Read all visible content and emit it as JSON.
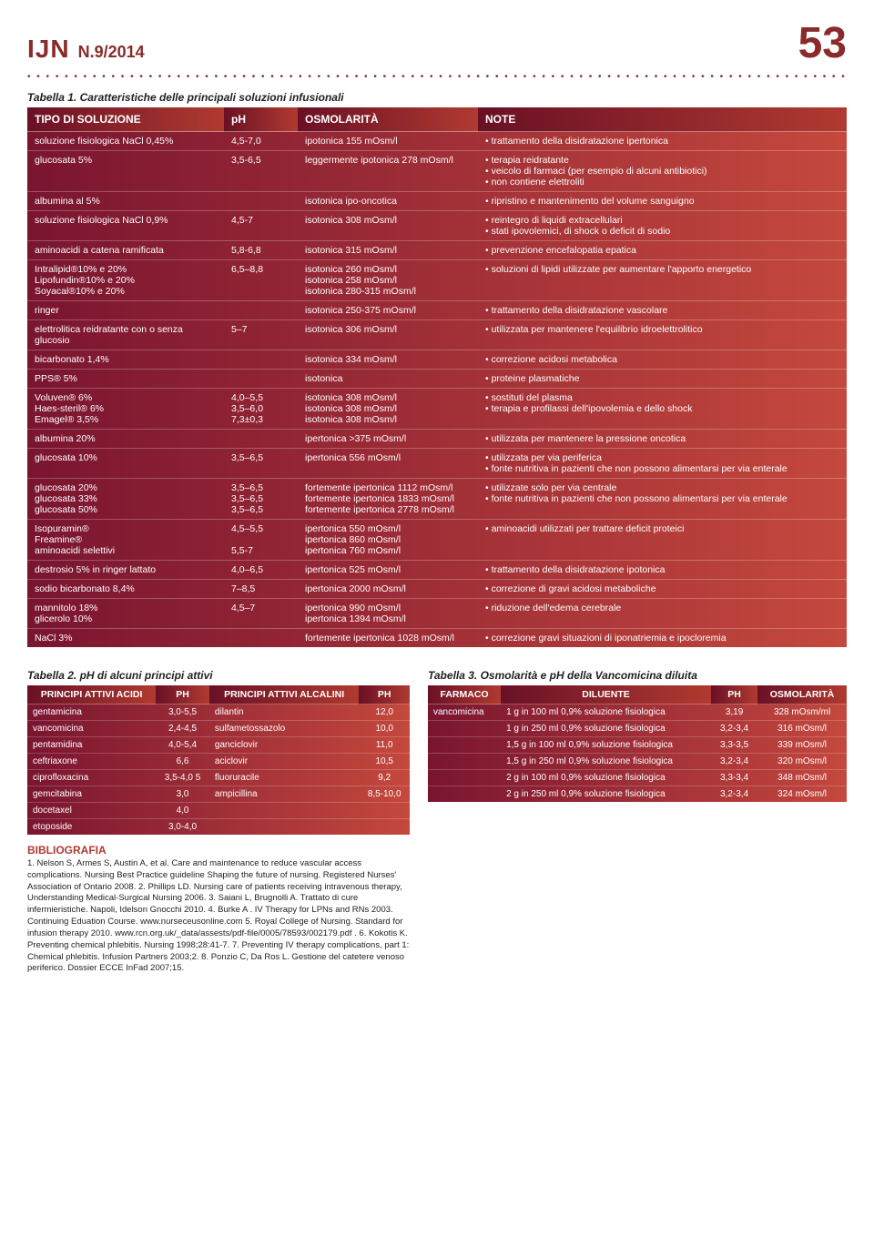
{
  "header": {
    "journal": "IJN",
    "issue": "N.9/2014",
    "page": "53"
  },
  "table1": {
    "caption": "Tabella 1. Caratteristiche delle principali soluzioni infusionali",
    "columns": [
      "TIPO DI SOLUZIONE",
      "pH",
      "OSMOLARITÀ",
      "NOTE"
    ],
    "rows": [
      {
        "tipo": "soluzione fisiologica NaCl 0,45%",
        "ph": "4,5-7,0",
        "osm": "ipotonica 155 mOsm/l",
        "note": [
          "trattamento della disidratazione ipertonica"
        ]
      },
      {
        "tipo": "glucosata 5%",
        "ph": "3,5-6,5",
        "osm": "leggermente ipotonica 278 mOsm/l",
        "note": [
          "terapia reidratante",
          "veicolo di farmaci (per esempio di alcuni antibiotici)",
          "non contiene elettroliti"
        ]
      },
      {
        "tipo": "albumina al 5%",
        "ph": "",
        "osm": "isotonica ipo-oncotica",
        "note": [
          "ripristino e mantenimento del volume sanguigno"
        ]
      },
      {
        "tipo": "soluzione fisiologica NaCl 0,9%",
        "ph": "4,5-7",
        "osm": "isotonica 308 mOsm/l",
        "note": [
          "reintegro di liquidi extracellulari",
          "stati ipovolemici, di shock o deficit di sodio"
        ]
      },
      {
        "tipo": "aminoacidi a catena ramificata",
        "ph": "5,8-6,8",
        "osm": "isotonica 315 mOsm/l",
        "note": [
          "prevenzione encefalopatia epatica"
        ]
      },
      {
        "tipo": "Intralipid®10% e 20%\nLipofundin®10% e 20%\nSoyacal®10% e 20%",
        "ph": "6,5–8,8",
        "osm": "isotonica 260 mOsm/l\nisotonica 258 mOsm/l\nisotonica 280-315 mOsm/l",
        "note": [
          "soluzioni di lipidi utilizzate per aumentare l'apporto energetico"
        ]
      },
      {
        "tipo": "ringer",
        "ph": "",
        "osm": "isotonica 250-375 mOsm/l",
        "note": [
          "trattamento della disidratazione vascolare"
        ]
      },
      {
        "tipo": "elettrolitica reidratante con o senza glucosio",
        "ph": "5–7",
        "osm": "isotonica 306 mOsm/l",
        "note": [
          "utilizzata per mantenere l'equilibrio idroelettrolitico"
        ]
      },
      {
        "tipo": "bicarbonato 1,4%",
        "ph": "",
        "osm": "isotonica 334 mOsm/l",
        "note": [
          "correzione acidosi metabolica"
        ]
      },
      {
        "tipo": "PPS® 5%",
        "ph": "",
        "osm": "isotonica",
        "note": [
          "proteine plasmatiche"
        ]
      },
      {
        "tipo": "Voluven® 6%\nHaes-steril® 6%\nEmagel® 3,5%",
        "ph": "4,0–5,5\n3,5–6,0\n7,3±0,3",
        "osm": "isotonica 308 mOsm/l\nisotonica 308 mOsm/l\nisotonica 308 mOsm/l",
        "note": [
          "sostituti del plasma",
          "terapia e profilassi dell'ipovolemia e dello shock"
        ]
      },
      {
        "tipo": "albumina 20%",
        "ph": "",
        "osm": "ipertonica >375 mOsm/l",
        "note": [
          "utilizzata per mantenere la pressione oncotica"
        ]
      },
      {
        "tipo": "glucosata 10%",
        "ph": "3,5–6,5",
        "osm": "ipertonica 556 mOsm/l",
        "note": [
          "utilizzata per via periferica",
          "fonte nutritiva in pazienti che non possono alimentarsi per via enterale"
        ]
      },
      {
        "tipo": "glucosata 20%\nglucosata 33%\nglucosata 50%",
        "ph": "3,5–6,5\n3,5–6,5\n3,5–6,5",
        "osm": "fortemente ipertonica 1112 mOsm/l\nfortemente ipertonica 1833 mOsm/l\nfortemente ipertonica 2778 mOsm/l",
        "note": [
          "utilizzate solo per via centrale",
          "fonte nutritiva in pazienti che non possono alimentarsi per via enterale"
        ]
      },
      {
        "tipo": "Isopuramin®\nFreamine®\naminoacidi selettivi",
        "ph": "4,5–5,5\n\n5,5-7",
        "osm": "ipertonica 550 mOsm/l\nipertonica 860 mOsm/l\nipertonica 760 mOsm/l",
        "note": [
          "aminoacidi utilizzati per trattare deficit proteici"
        ]
      },
      {
        "tipo": "destrosio 5% in ringer lattato",
        "ph": "4,0–6,5",
        "osm": "ipertonica 525 mOsm/l",
        "note": [
          "trattamento della disidratazione ipotonica"
        ]
      },
      {
        "tipo": "sodio bicarbonato 8,4%",
        "ph": "7–8,5",
        "osm": "ipertonica 2000 mOsm/l",
        "note": [
          "correzione di gravi acidosi metaboliche"
        ]
      },
      {
        "tipo": "mannitolo 18%\nglicerolo 10%",
        "ph": "4,5–7",
        "osm": "ipertonica 990 mOsm/l\nipertonica 1394 mOsm/l",
        "note": [
          "riduzione dell'edema cerebrale"
        ]
      },
      {
        "tipo": "NaCl 3%",
        "ph": "",
        "osm": "fortemente ipertonica 1028 mOsm/l",
        "note": [
          "correzione gravi situazioni di iponatriemia e ipocloremia"
        ]
      }
    ]
  },
  "table2": {
    "caption": "Tabella 2. pH di alcuni principi attivi",
    "columns": [
      "PRINCIPI ATTIVI ACIDI",
      "PH",
      "PRINCIPI ATTIVI ALCALINI",
      "PH"
    ],
    "rows": [
      [
        "gentamicina",
        "3,0-5,5",
        "dilantin",
        "12,0"
      ],
      [
        "vancomicina",
        "2,4-4,5",
        "sulfametossazolo",
        "10,0"
      ],
      [
        "pentamidina",
        "4,0-5,4",
        "ganciclovir",
        "11,0"
      ],
      [
        "ceftriaxone",
        "6,6",
        "aciclovir",
        "10,5"
      ],
      [
        "ciprofloxacina",
        "3,5-4,0 5",
        "fluoruracile",
        "9,2"
      ],
      [
        "gemcitabina",
        "3,0",
        "ampicillina",
        "8,5-10,0"
      ],
      [
        "docetaxel",
        "4,0",
        "",
        ""
      ],
      [
        "etoposide",
        "3,0-4,0",
        "",
        ""
      ]
    ]
  },
  "table3": {
    "caption": "Tabella 3. Osmolarità e pH della Vancomicina diluita",
    "columns": [
      "FARMACO",
      "DILUENTE",
      "PH",
      "OSMOLARITÀ"
    ],
    "rows": [
      [
        "vancomicina",
        "1 g in 100 ml 0,9% soluzione fisiologica",
        "3,19",
        "328 mOsm/ml"
      ],
      [
        "",
        "1 g in 250 ml 0,9% soluzione fisiologica",
        "3,2-3,4",
        "316 mOsm/l"
      ],
      [
        "",
        "1,5 g in 100 ml 0,9% soluzione fisiologica",
        "3,3-3,5",
        "339 mOsm/l"
      ],
      [
        "",
        "1,5 g in 250 ml 0,9% soluzione fisiologica",
        "3,2-3,4",
        "320 mOsm/l"
      ],
      [
        "",
        "2 g in 100 ml 0,9% soluzione fisiologica",
        "3,3-3,4",
        "348 mOsm/l"
      ],
      [
        "",
        "2 g in 250 ml 0,9% soluzione fisiologica",
        "3,2-3,4",
        "324 mOsm/l"
      ]
    ]
  },
  "biblio": {
    "title": "BIBLIOGRAFIA",
    "text": "1. Nelson S, Armes S, Austin A, et al. Care and maintenance to reduce vascular access complications. Nursing Best Practice guideline Shaping the future of nursing. Registered Nurses' Association of Ontario 2008. 2. Phillips LD. Nursing care of patients receiving intravenous therapy, Understanding Medical-Surgical Nursing 2006. 3. Saiani L, Brugnolli A. Trattato di cure infermieristiche. Napoli, Idelson Gnocchi 2010. 4. Burke A . IV Therapy for LPNs and RNs 2003. Continuing Eduation Course. www.nurseceusonline.com 5. Royal College of Nursing. Standard for infusion therapy 2010. www.rcn.org.uk/_data/assests/pdf-file/0005/78593/002179.pdf . 6. Kokotis K. Preventing chemical phlebitis. Nursing 1998;28:41-7. 7. Preventing IV therapy complications, part 1: Chemical phlebitis. Infusion Partners 2003;2. 8. Ponzio C, Da Ros L. Gestione del catetere venoso periferico. Dossier ECCE InFad 2007;15."
  }
}
